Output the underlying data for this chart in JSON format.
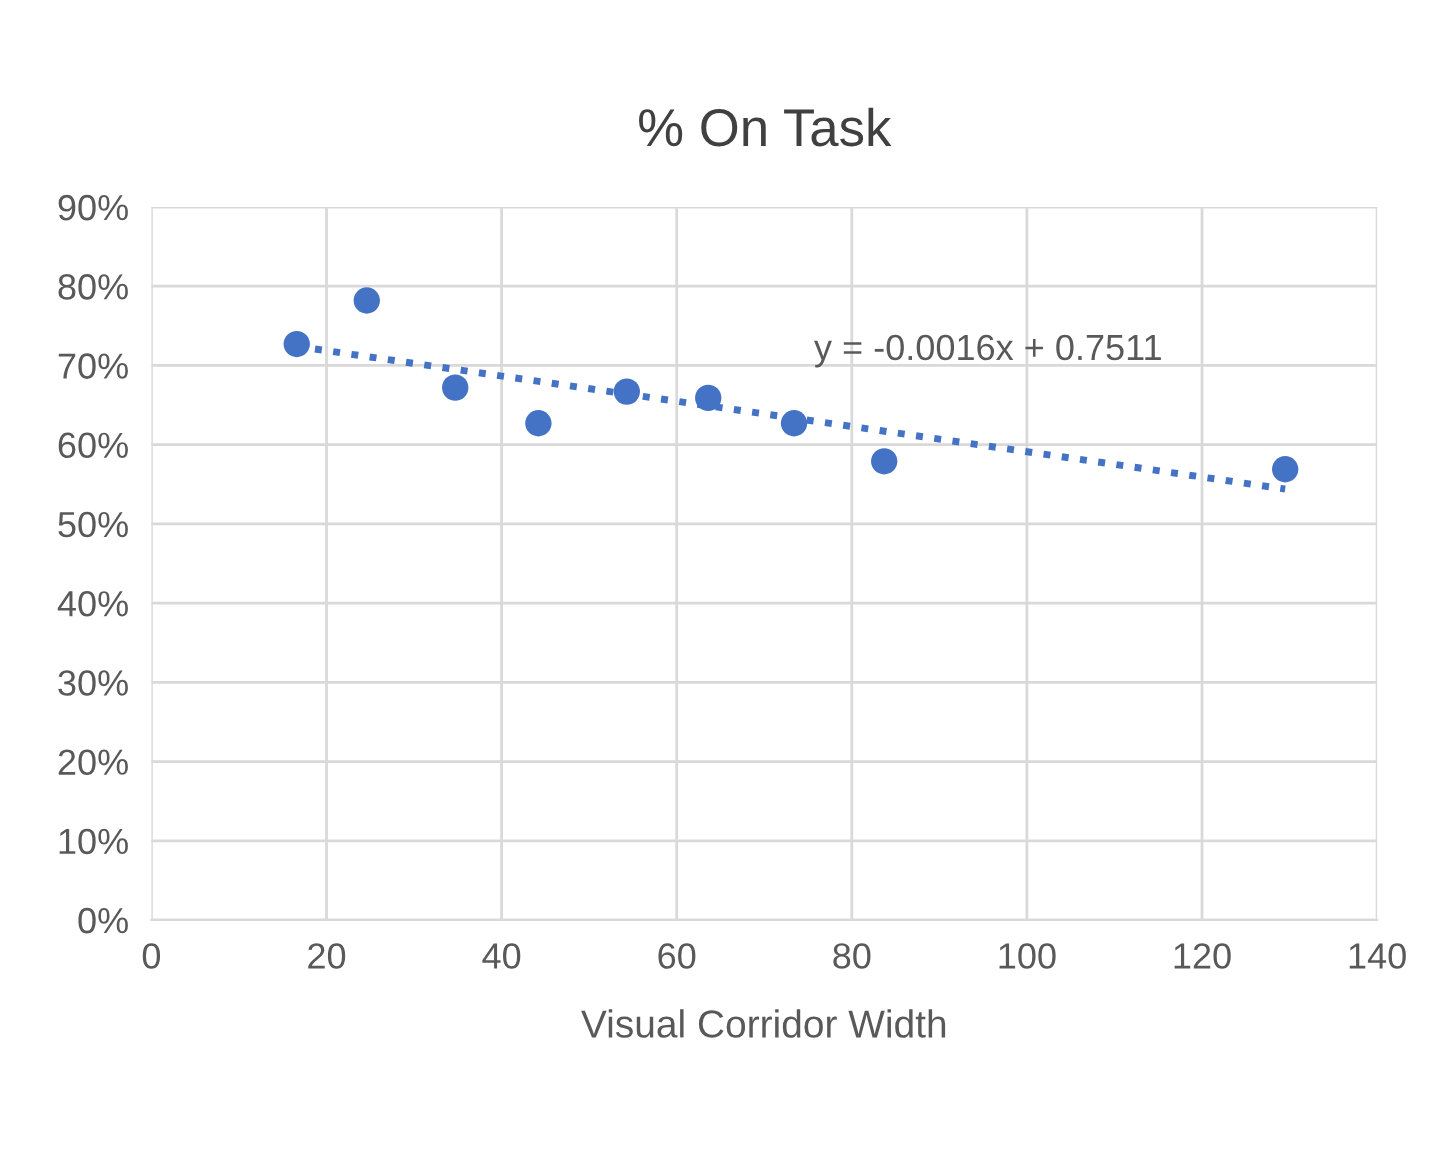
{
  "chart_data": {
    "type": "scatter",
    "title": "% On Task",
    "xlabel": "Visual Corridor Width",
    "series": [
      {
        "color": "#4472c4",
        "marker": "circle",
        "x": [
          16.6,
          24.6,
          34.7,
          44.2,
          54.3,
          63.6,
          73.4,
          83.7,
          129.5
        ],
        "values": [
          72.7,
          78.2,
          67.2,
          62.7,
          66.7,
          65.9,
          62.7,
          57.9,
          56.9
        ]
      },
      {
        "type": "line",
        "color": "#4472c4",
        "marker": "none",
        "line_style": "dotted",
        "x": [
          16.6,
          129.5
        ],
        "values": [
          72.4,
          54.4
        ]
      }
    ],
    "annotations": [
      "y = -0.0016x + 0.7511"
    ],
    "xlim": [
      0,
      140
    ],
    "xticks": [
      0,
      20,
      40,
      60,
      80,
      100,
      120,
      140
    ],
    "ylim": [
      0,
      90
    ],
    "yticks": [
      {
        "value": 0,
        "label": "0%"
      },
      {
        "value": 10,
        "label": "10%"
      },
      {
        "value": 20,
        "label": "20%"
      },
      {
        "value": 30,
        "label": "30%"
      },
      {
        "value": 40,
        "label": "40%"
      },
      {
        "value": 50,
        "label": "50%"
      },
      {
        "value": 60,
        "label": "60%"
      },
      {
        "value": 70,
        "label": "70%"
      },
      {
        "value": 80,
        "label": "80%"
      },
      {
        "value": 90,
        "label": "90%"
      }
    ],
    "grid": true,
    "legend": false
  }
}
